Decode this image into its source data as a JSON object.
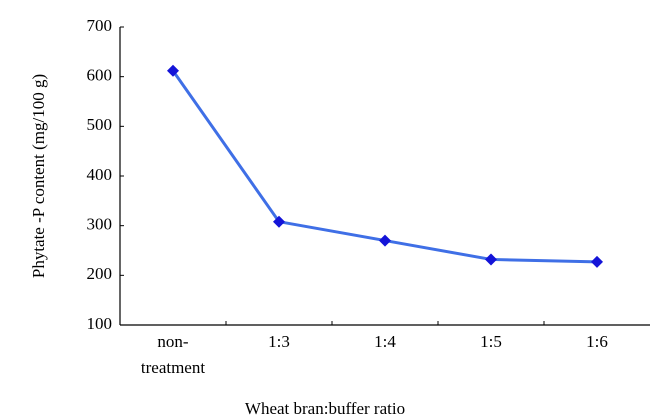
{
  "chart_data": {
    "type": "line",
    "categories": [
      "non-treatment",
      "1:3",
      "1:4",
      "1:5",
      "1:6"
    ],
    "series": [
      {
        "name": "Phytate -P content",
        "color": "#3f6fe6",
        "marker_color": "#1414d8",
        "values": [
          612,
          308,
          270,
          232,
          227
        ]
      }
    ],
    "ylim": [
      100,
      700
    ],
    "yticks": [
      100,
      200,
      300,
      400,
      500,
      600,
      700
    ],
    "xlabel": "Wheat bran:buffer ratio",
    "ylabel": "Phytate -P content (mg/100 g)",
    "grid": false
  }
}
